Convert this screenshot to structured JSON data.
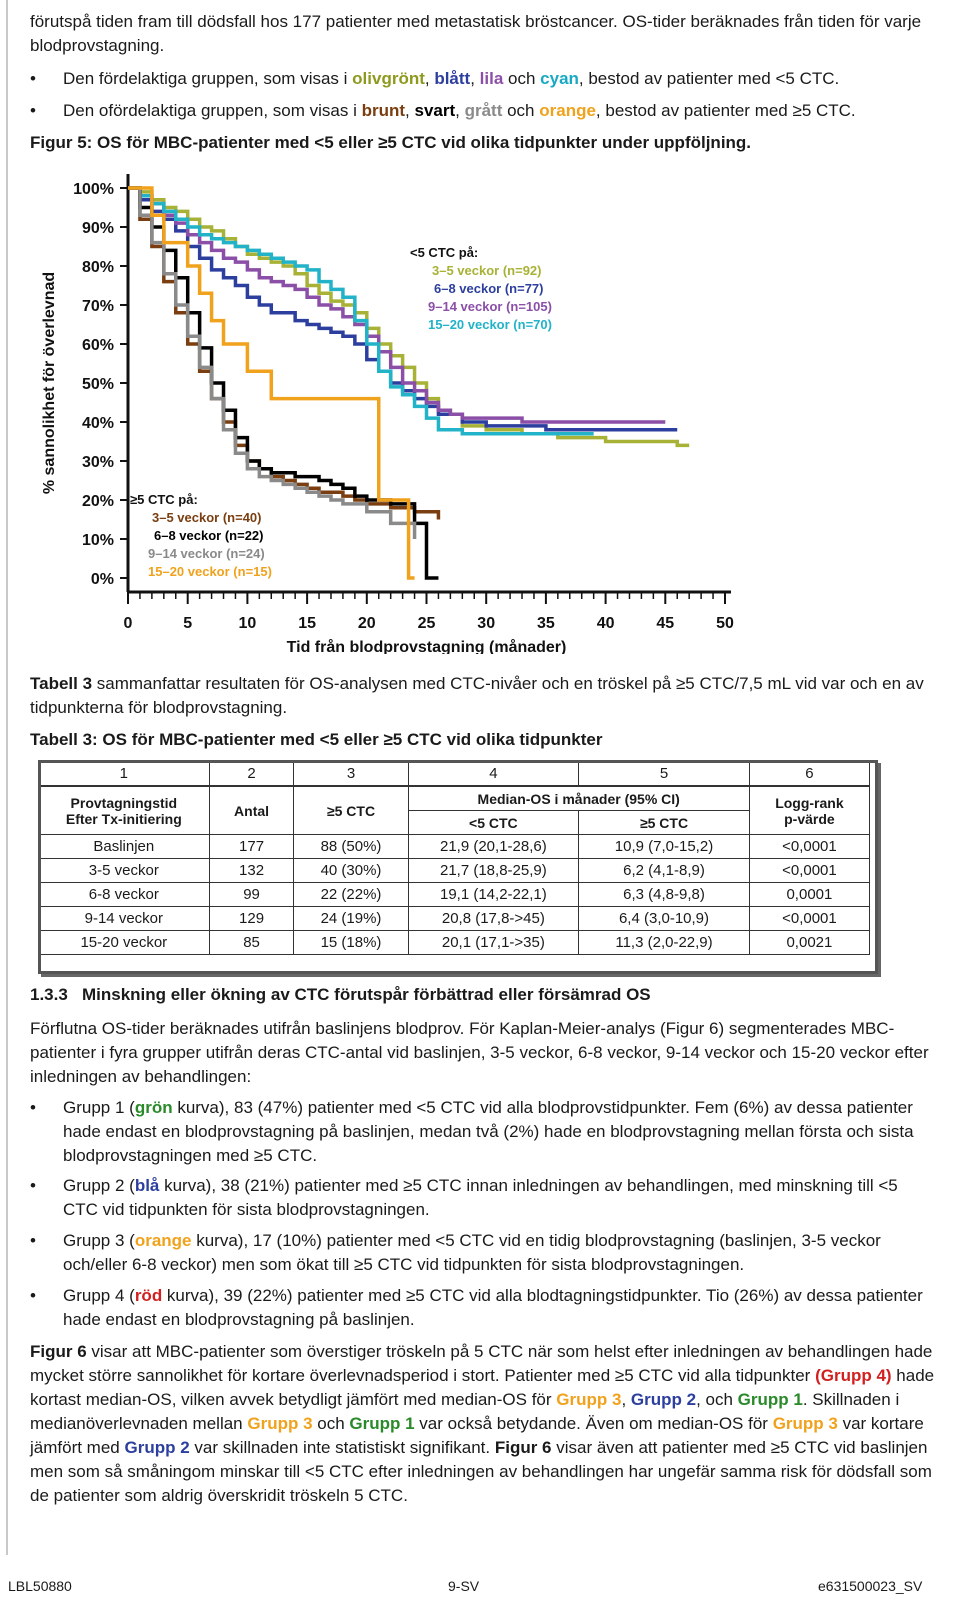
{
  "intro": {
    "line1": "förutspå tiden fram till dödsfall hos 177 patienter med metastatisk bröstcancer. OS-tider beräknades från tiden för varje blodprovstagning.",
    "bullet_fav": {
      "pre": "Den fördelaktiga gruppen, som visas i ",
      "c1": "olivgrönt",
      "s1": ", ",
      "c2": "blått",
      "s2": ", ",
      "c3": "lila",
      "s3": " och ",
      "c4": "cyan",
      "post": ", bestod av patienter med <5 CTC."
    },
    "bullet_unfav": {
      "pre": "Den ofördelaktiga gruppen, som visas i ",
      "c1": "brunt",
      "s1": ", ",
      "c2": "svart",
      "s2": ", ",
      "c3": "grått",
      "s3": " och ",
      "c4": "orange",
      "post": ", bestod av patienter med ≥5 CTC."
    },
    "figure_caption": "Figur 5: OS för MBC-patienter med <5 eller ≥5 CTC vid olika tidpunkter under uppföljning."
  },
  "chart_data": {
    "type": "line",
    "title": "",
    "xlabel": "Tid från blodprovstagning (månader)",
    "ylabel": "% sannolikhet för överlevnad",
    "xlim": [
      0,
      50
    ],
    "ylim": [
      0,
      100
    ],
    "x_ticks": [
      "0",
      "5",
      "10",
      "15",
      "20",
      "25",
      "30",
      "35",
      "40",
      "45",
      "50"
    ],
    "y_ticks": [
      "0%",
      "10%",
      "20%",
      "30%",
      "40%",
      "50%",
      "60%",
      "70%",
      "80%",
      "90%",
      "100%"
    ],
    "legend_low": {
      "title": "<5 CTC på:",
      "entries": [
        "3–5 veckor (n=92)",
        "6–8 veckor (n=77)",
        "9–14 veckor (n=105)",
        "15–20 veckor (n=70)"
      ]
    },
    "legend_high": {
      "title": "≥5 CTC på:",
      "entries": [
        "3–5 veckor (n=40)",
        "6–8 veckor (n=22)",
        "9–14 veckor (n=24)",
        "15–20 veckor (n=15)"
      ]
    },
    "series": [
      {
        "name": "<5 CTC 3–5 veckor (n=92)",
        "color": "#a8b236",
        "x": [
          0,
          1,
          2,
          3,
          4,
          5,
          6,
          7,
          8,
          9,
          10,
          11,
          12,
          13,
          14,
          15,
          16,
          17,
          18,
          19,
          20,
          21,
          22,
          23,
          24,
          25,
          26,
          27,
          28,
          30,
          33,
          36,
          40,
          46,
          47
        ],
        "y": [
          100,
          99,
          97,
          95,
          94,
          92,
          90,
          89,
          87,
          85,
          83,
          82,
          81,
          80,
          78,
          75,
          73,
          71,
          70,
          68,
          64,
          60,
          57,
          54,
          50,
          46,
          43,
          42,
          39,
          38,
          37,
          36,
          35,
          34,
          34
        ]
      },
      {
        "name": "<5 CTC 6–8 veckor (n=77)",
        "color": "#2d3f9e",
        "x": [
          0,
          1,
          2,
          3,
          4,
          5,
          6,
          7,
          8,
          9,
          10,
          11,
          12,
          13,
          14,
          15,
          16,
          17,
          18,
          19,
          20,
          21,
          22,
          23,
          24,
          25,
          26,
          28,
          30,
          35,
          40,
          46
        ],
        "y": [
          100,
          97,
          94,
          92,
          89,
          85,
          82,
          79,
          77,
          75,
          72,
          70,
          68,
          68,
          66,
          65,
          64,
          63,
          62,
          60,
          56,
          53,
          50,
          48,
          46,
          44,
          42,
          40,
          39,
          38,
          38,
          38
        ]
      },
      {
        "name": "<5 CTC 9–14 veckor (n=105)",
        "color": "#8b4fa7",
        "x": [
          0,
          1,
          2,
          3,
          4,
          5,
          6,
          7,
          8,
          9,
          10,
          11,
          12,
          13,
          14,
          15,
          16,
          17,
          18,
          19,
          20,
          21,
          22,
          23,
          24,
          25,
          26,
          27,
          28,
          30,
          33,
          36,
          40,
          45
        ],
        "y": [
          100,
          98,
          96,
          93,
          91,
          88,
          86,
          84,
          82,
          81,
          79,
          77,
          76,
          75,
          74,
          72,
          70,
          69,
          67,
          65,
          62,
          58,
          54,
          50,
          48,
          45,
          43,
          42,
          41,
          41,
          40,
          40,
          40,
          40
        ]
      },
      {
        "name": "<5 CTC 15–20 veckor (n=70)",
        "color": "#22b3c9",
        "x": [
          0,
          1,
          2,
          3,
          4,
          5,
          6,
          7,
          8,
          9,
          10,
          11,
          12,
          13,
          14,
          15,
          16,
          17,
          18,
          19,
          20,
          21,
          22,
          23,
          24,
          25,
          26,
          28,
          30,
          35,
          39
        ],
        "y": [
          100,
          98,
          96,
          94,
          92,
          90,
          88,
          87,
          86,
          85,
          84,
          83,
          82,
          81,
          80,
          79,
          76,
          74,
          72,
          66,
          60,
          53,
          49,
          47,
          44,
          41,
          38,
          37,
          37,
          37,
          37
        ]
      },
      {
        "name": "≥5 CTC 3–5 veckor (n=40)",
        "color": "#7a3e10",
        "x": [
          0,
          1,
          2,
          3,
          4,
          5,
          6,
          7,
          8,
          9,
          10,
          11,
          12,
          13,
          14,
          15,
          16,
          17,
          18,
          19,
          20,
          22,
          24,
          26
        ],
        "y": [
          100,
          92,
          85,
          76,
          68,
          60,
          53,
          46,
          40,
          34,
          30,
          28,
          26,
          25,
          24,
          23,
          22,
          22,
          21,
          20,
          19,
          18,
          17,
          15
        ]
      },
      {
        "name": "≥5 CTC 6–8 veckor (n=22)",
        "color": "#000000",
        "x": [
          0,
          1,
          2,
          3,
          4,
          5,
          6,
          7,
          8,
          9,
          10,
          11,
          12,
          13,
          14,
          15,
          16,
          17,
          18,
          19,
          20,
          22,
          24,
          25,
          26
        ],
        "y": [
          100,
          95,
          90,
          84,
          77,
          68,
          59,
          50,
          43,
          36,
          30,
          28,
          27,
          27,
          26,
          26,
          25,
          24,
          23,
          21,
          20,
          19,
          14,
          0,
          0
        ]
      },
      {
        "name": "≥5 CTC 9–14 veckor (n=24)",
        "color": "#8a8a8a",
        "x": [
          0,
          1,
          2,
          3,
          4,
          5,
          6,
          7,
          8,
          9,
          10,
          11,
          12,
          13,
          14,
          15,
          16,
          17,
          18,
          20,
          22,
          24
        ],
        "y": [
          100,
          93,
          86,
          78,
          70,
          62,
          54,
          46,
          38,
          32,
          28,
          26,
          25,
          24,
          23,
          22,
          21,
          20,
          19,
          17,
          14,
          10
        ]
      },
      {
        "name": "≥5 CTC 15–20 veckor (n=15)",
        "color": "#f0a21d",
        "x": [
          0,
          1,
          2,
          3,
          4,
          5,
          6,
          7,
          8,
          9,
          10,
          11,
          12,
          13,
          14,
          15,
          16,
          17,
          18,
          19,
          20,
          21,
          22,
          23,
          23.5,
          24
        ],
        "y": [
          100,
          100,
          93,
          86,
          86,
          80,
          73,
          66,
          60,
          60,
          53,
          53,
          46,
          46,
          46,
          46,
          46,
          46,
          46,
          46,
          46,
          20,
          20,
          20,
          0,
          0
        ]
      }
    ]
  },
  "para_table_intro": {
    "bold": "Tabell 3",
    "rest": " sammanfattar resultaten för OS-analysen med CTC-nivåer och en tröskel på ≥5 CTC/7,5 mL vid var och en av tidpunkterna för blodprovstagning."
  },
  "table_caption": "Tabell 3: OS för MBC-patienter med <5 eller ≥5 CTC vid olika tidpunkter",
  "table": {
    "col_numbers": [
      "1",
      "2",
      "3",
      "4",
      "5",
      "6"
    ],
    "h_time": "Provtagningstid",
    "h_time2": "Efter Tx-initiering",
    "h_count": "Antal",
    "h_ctc": "≥5 CTC",
    "h_median": "Median-OS i månader (95% CI)",
    "h_lt5": "<5 CTC",
    "h_ge5": "≥5 CTC",
    "h_logrank": "Logg-rank",
    "h_pvalue": "p-värde",
    "rows": [
      [
        "Baslinjen",
        "177",
        "88 (50%)",
        "21,9 (20,1-28,6)",
        "10,9 (7,0-15,2)",
        "<0,0001"
      ],
      [
        "3-5 veckor",
        "132",
        "40 (30%)",
        "21,7 (18,8-25,9)",
        "6,2 (4,1-8,9)",
        "<0,0001"
      ],
      [
        "6-8 veckor",
        "99",
        "22 (22%)",
        "19,1 (14,2-22,1)",
        "6,3 (4,8-9,8)",
        "0,0001"
      ],
      [
        "9-14 veckor",
        "129",
        "24 (19%)",
        "20,8 (17,8->45)",
        "6,4 (3,0-10,9)",
        "<0,0001"
      ],
      [
        "15-20 veckor",
        "85",
        "15 (18%)",
        "20,1 (17,1->35)",
        "11,3 (2,0-22,9)",
        "0,0021"
      ]
    ]
  },
  "section": {
    "number": "1.3.3",
    "title": "Minskning eller ökning av CTC förutspår förbättrad eller försämrad OS",
    "para1": "Förflutna OS-tider beräknades utifrån baslinjens blodprov. För Kaplan-Meier-analys (Figur 6) segmenterades MBC-patienter i fyra grupper utifrån deras CTC-antal vid baslinjen, 3-5 veckor, 6-8 veckor, 9-14 veckor och 15-20 veckor efter inledningen av behandlingen:",
    "g1": {
      "pre": "Grupp 1 (",
      "c": "grön",
      "post": " kurva), 83 (47%) patienter med <5 CTC vid alla blodprovstidpunkter. Fem (6%) av dessa patienter hade endast en blodprovstagning på baslinjen, medan två (2%) hade en blodprovstagning mellan första och sista blodprovstagningen med ≥5 CTC."
    },
    "g2": {
      "pre": "Grupp 2 (",
      "c": "blå",
      "post": " kurva), 38 (21%) patienter med ≥5 CTC innan inledningen av behandlingen, med minskning till <5 CTC vid tidpunkten för sista blodprovstagningen."
    },
    "g3": {
      "pre": "Grupp 3 (",
      "c": "orange",
      "post": " kurva), 17 (10%) patienter med <5 CTC vid en tidig blodprovstagning (baslinjen, 3-5 veckor och/eller 6-8 veckor) men som ökat till ≥5 CTC vid tidpunkten för sista blodprovstagningen."
    },
    "g4": {
      "pre": "Grupp 4 (",
      "c": "röd",
      "post": " kurva), 39 (22%) patienter med ≥5 CTC vid alla blodtagningstidpunkter. Tio (26%) av dessa patienter hade endast en blodprovstagning på baslinjen."
    },
    "last": {
      "b1": "Figur 6",
      "t1": " visar att MBC-patienter som överstiger tröskeln på 5 CTC när som helst efter inledningen av behandlingen hade mycket större sannolikhet för kortare överlevnadsperiod i stort. Patienter med ≥5 CTC vid alla tidpunkter ",
      "r1": "(Grupp 4)",
      "t2": " hade kortast median-OS, vilken avvek betydligt jämfört med median-OS för ",
      "o1": "Grupp 3",
      "t3": ", ",
      "n1": "Grupp 2",
      "t4": ", och ",
      "g1": "Grupp 1",
      "t5": ". Skillnaden i medianöverlevnaden mellan ",
      "o2": "Grupp 3",
      "t6": " och ",
      "g2": "Grupp 1",
      "t7": " var också betydande. Även om median-OS för ",
      "o3": "Grupp 3",
      "t8": " var kortare jämfört med ",
      "n2": "Grupp 2",
      "t9": " var skillnaden inte statistiskt signifikant. ",
      "b2": "Figur 6",
      "t10": " visar även att patienter med ≥5 CTC vid baslinjen men som så småningom minskar till <5 CTC efter inledningen av behandlingen har ungefär samma risk för dödsfall som de patienter som aldrig överskridit tröskeln 5 CTC."
    }
  },
  "footer": {
    "left": "LBL50880",
    "center": "9-SV",
    "right": "e631500023_SV"
  }
}
